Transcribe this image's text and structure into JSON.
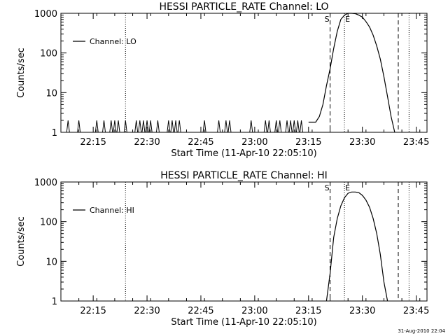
{
  "footer": {
    "timestamp": "31-Aug-2010 22:04"
  },
  "chart_data": [
    {
      "type": "line",
      "title": "HESSI PARTICLE_RATE Channel: LO",
      "xlabel": "Start Time (11-Apr-10 22:05:10)",
      "ylabel": "Counts/sec",
      "y_scale": "log",
      "xlim": [
        "22:06",
        "23:48"
      ],
      "ylim": [
        1,
        1000
      ],
      "x_ticks": [
        "22:15",
        "22:30",
        "22:45",
        "23:00",
        "23:15",
        "23:30",
        "23:45"
      ],
      "y_ticks": [
        "1",
        "10",
        "100",
        "1000"
      ],
      "legend": {
        "position": "top-left",
        "entries": [
          "Channel: LO"
        ]
      },
      "markers": [
        {
          "label": "",
          "time": "22:24",
          "style": "dotted"
        },
        {
          "label": "S",
          "time": "23:21",
          "style": "dashed"
        },
        {
          "label": "E",
          "time": "23:25",
          "style": "dotted"
        },
        {
          "label": "",
          "time": "23:40",
          "style": "dashed"
        },
        {
          "label": "",
          "time": "23:43",
          "style": "dotted"
        }
      ],
      "spikes": [
        "22:08",
        "22:11",
        "22:16",
        "22:18",
        "22:20",
        "22:21",
        "22:22",
        "22:24",
        "22:27",
        "22:28",
        "22:29",
        "22:30",
        "22:31",
        "22:33",
        "22:36",
        "22:37",
        "22:38",
        "22:39",
        "22:46",
        "22:50",
        "22:52",
        "22:53",
        "22:59",
        "23:03",
        "23:04",
        "23:06",
        "23:07",
        "23:09",
        "23:10",
        "23:11",
        "23:12",
        "23:13"
      ],
      "series": [
        {
          "name": "Channel: LO",
          "points": [
            [
              "23:15",
              1.8
            ],
            [
              "23:17",
              1.8
            ],
            [
              "23:18",
              2.5
            ],
            [
              "23:19",
              5
            ],
            [
              "23:20",
              15
            ],
            [
              "23:21",
              40
            ],
            [
              "23:22",
              130
            ],
            [
              "23:23",
              350
            ],
            [
              "23:24",
              700
            ],
            [
              "23:25",
              900
            ],
            [
              "23:26",
              1000
            ],
            [
              "23:27",
              1000
            ],
            [
              "23:28",
              980
            ],
            [
              "23:29",
              900
            ],
            [
              "23:30",
              800
            ],
            [
              "23:31",
              620
            ],
            [
              "23:32",
              450
            ],
            [
              "23:33",
              280
            ],
            [
              "23:34",
              150
            ],
            [
              "23:35",
              70
            ],
            [
              "23:36",
              25
            ],
            [
              "23:37",
              8
            ],
            [
              "23:38",
              2.5
            ],
            [
              "23:39",
              1
            ]
          ]
        }
      ]
    },
    {
      "type": "line",
      "title": "HESSI PARTICLE_RATE Channel: HI",
      "xlabel": "Start Time (11-Apr-10 22:05:10)",
      "ylabel": "Counts/sec",
      "y_scale": "log",
      "xlim": [
        "22:06",
        "23:48"
      ],
      "ylim": [
        1,
        1000
      ],
      "x_ticks": [
        "22:15",
        "22:30",
        "22:45",
        "23:00",
        "23:15",
        "23:30",
        "23:45"
      ],
      "y_ticks": [
        "1",
        "10",
        "100",
        "1000"
      ],
      "legend": {
        "position": "top-left",
        "entries": [
          "Channel: HI"
        ]
      },
      "markers": [
        {
          "label": "",
          "time": "22:24",
          "style": "dotted"
        },
        {
          "label": "S",
          "time": "23:21",
          "style": "dashed"
        },
        {
          "label": "E",
          "time": "23:25",
          "style": "dotted"
        },
        {
          "label": "",
          "time": "23:40",
          "style": "dashed"
        },
        {
          "label": "",
          "time": "23:43",
          "style": "dotted"
        }
      ],
      "spikes": [],
      "series": [
        {
          "name": "Channel: HI",
          "points": [
            [
              "23:20",
              1
            ],
            [
              "23:21",
              5
            ],
            [
              "23:22",
              40
            ],
            [
              "23:23",
              120
            ],
            [
              "23:24",
              250
            ],
            [
              "23:25",
              400
            ],
            [
              "23:26",
              520
            ],
            [
              "23:27",
              560
            ],
            [
              "23:28",
              560
            ],
            [
              "23:29",
              540
            ],
            [
              "23:30",
              460
            ],
            [
              "23:31",
              350
            ],
            [
              "23:32",
              230
            ],
            [
              "23:33",
              120
            ],
            [
              "23:34",
              50
            ],
            [
              "23:35",
              15
            ],
            [
              "23:36",
              3
            ],
            [
              "23:37",
              1
            ]
          ]
        }
      ]
    }
  ]
}
